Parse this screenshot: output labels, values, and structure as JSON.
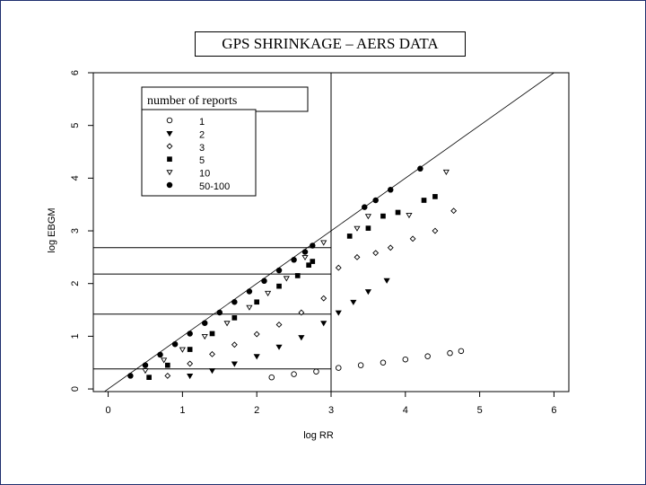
{
  "title": "GPS SHRINKAGE – AERS DATA",
  "chart_data": {
    "type": "scatter",
    "title": "GPS SHRINKAGE – AERS DATA",
    "xlabel": "log RR",
    "ylabel": "log EBGM",
    "xlim": [
      -0.2,
      6.2
    ],
    "ylim": [
      -0.05,
      6.0
    ],
    "x_ticks": [
      0,
      1,
      2,
      3,
      4,
      5,
      6
    ],
    "y_ticks": [
      0,
      1,
      2,
      3,
      4,
      5,
      6
    ],
    "x_tick_labels": [
      "0",
      "1",
      "2",
      "3",
      "4",
      "5",
      "6"
    ],
    "y_tick_labels": [
      "0",
      "1",
      "2",
      "3",
      "4",
      "5",
      "6"
    ],
    "grid": false,
    "reference_line": {
      "type": "identity",
      "slope": 1,
      "intercept": 0
    },
    "reference_lines": {
      "vertical_x": 3.0,
      "horizontal_y": [
        0.38,
        1.42,
        2.18,
        2.68
      ]
    },
    "legend": {
      "title": "number of reports",
      "placement": "top-left",
      "entries": [
        {
          "label": "1",
          "marker": "circle-open"
        },
        {
          "label": "2",
          "marker": "triangle-down-filled"
        },
        {
          "label": "3",
          "marker": "diamond-open"
        },
        {
          "label": "5",
          "marker": "square-filled"
        },
        {
          "label": "10",
          "marker": "triangle-down-open"
        },
        {
          "label": "50-100",
          "marker": "circle-filled"
        }
      ]
    },
    "series": [
      {
        "name": "1",
        "marker": "circle-open",
        "x": [
          2.2,
          2.5,
          2.8,
          3.1,
          3.4,
          3.7,
          4.0,
          4.3,
          4.6,
          4.75
        ],
        "y": [
          0.22,
          0.28,
          0.33,
          0.4,
          0.45,
          0.5,
          0.56,
          0.62,
          0.68,
          0.72
        ]
      },
      {
        "name": "2",
        "marker": "triangle-down-filled",
        "x": [
          1.1,
          1.4,
          1.7,
          2.0,
          2.3,
          2.6,
          2.9,
          3.1,
          3.3,
          3.5,
          3.75
        ],
        "y": [
          0.25,
          0.35,
          0.48,
          0.62,
          0.8,
          0.98,
          1.25,
          1.45,
          1.65,
          1.85,
          2.06
        ]
      },
      {
        "name": "3",
        "marker": "diamond-open",
        "x": [
          0.8,
          1.1,
          1.4,
          1.7,
          2.0,
          2.3,
          2.6,
          2.9,
          3.1,
          3.35,
          3.6,
          3.8,
          4.1,
          4.4,
          4.65
        ],
        "y": [
          0.25,
          0.48,
          0.66,
          0.84,
          1.04,
          1.22,
          1.45,
          1.72,
          2.3,
          2.5,
          2.58,
          2.68,
          2.85,
          3.0,
          3.38
        ]
      },
      {
        "name": "5",
        "marker": "square-filled",
        "x": [
          0.55,
          0.8,
          1.1,
          1.4,
          1.7,
          2.0,
          2.3,
          2.55,
          2.7,
          2.75,
          3.25,
          3.5,
          3.7,
          3.9,
          4.25,
          4.4
        ],
        "y": [
          0.22,
          0.45,
          0.75,
          1.05,
          1.35,
          1.65,
          1.95,
          2.15,
          2.35,
          2.42,
          2.9,
          3.05,
          3.28,
          3.35,
          3.58,
          3.65
        ]
      },
      {
        "name": "10",
        "marker": "triangle-down-open",
        "x": [
          0.5,
          0.75,
          1.0,
          1.3,
          1.6,
          1.9,
          2.15,
          2.4,
          2.65,
          2.9,
          3.35,
          3.5,
          4.05,
          4.55
        ],
        "y": [
          0.35,
          0.55,
          0.75,
          1.0,
          1.25,
          1.55,
          1.82,
          2.1,
          2.5,
          2.78,
          3.05,
          3.28,
          3.3,
          4.12
        ]
      },
      {
        "name": "50-100",
        "marker": "circle-filled",
        "x": [
          0.3,
          0.5,
          0.7,
          0.9,
          1.1,
          1.3,
          1.5,
          1.7,
          1.9,
          2.1,
          2.3,
          2.5,
          2.65,
          2.75,
          3.45,
          3.6,
          3.8,
          4.2
        ],
        "y": [
          0.25,
          0.45,
          0.65,
          0.85,
          1.05,
          1.25,
          1.45,
          1.65,
          1.85,
          2.05,
          2.25,
          2.45,
          2.6,
          2.72,
          3.45,
          3.58,
          3.78,
          4.18
        ]
      }
    ]
  }
}
